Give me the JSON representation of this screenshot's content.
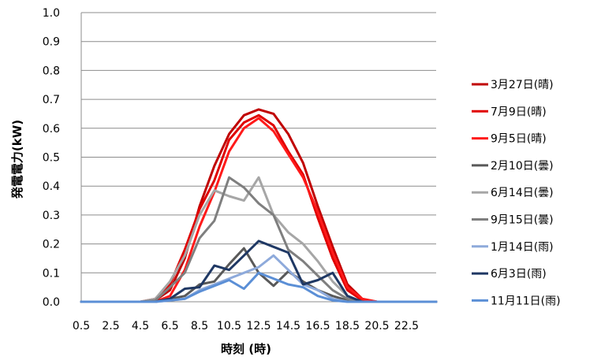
{
  "chart_data": {
    "type": "line",
    "title": "",
    "xlabel": "時刻 (時)",
    "ylabel": "発電電力(kW)",
    "ylim": [
      0,
      1.0
    ],
    "yticks": [
      "0.0",
      "0.1",
      "0.2",
      "0.3",
      "0.4",
      "0.5",
      "0.6",
      "0.7",
      "0.8",
      "0.9",
      "1.0"
    ],
    "xlim": [
      0.5,
      24.5
    ],
    "xticks": [
      "0.5",
      "2.5",
      "4.5",
      "6.5",
      "8.5",
      "10.5",
      "12.5",
      "14.5",
      "16.5",
      "18.5",
      "20.5",
      "22.5"
    ],
    "x": [
      0.5,
      1.5,
      2.5,
      3.5,
      4.5,
      5.5,
      6.5,
      7.5,
      8.5,
      9.5,
      10.5,
      11.5,
      12.5,
      13.5,
      14.5,
      15.5,
      16.5,
      17.5,
      18.5,
      19.5,
      20.5,
      21.5,
      22.5,
      23.5,
      24.5
    ],
    "grid": "horizontal",
    "legend_position": "right",
    "series": [
      {
        "name": "3月27日(晴)",
        "color": "#c00000",
        "values": [
          0,
          0,
          0,
          0,
          0,
          0.005,
          0.04,
          0.15,
          0.33,
          0.47,
          0.58,
          0.645,
          0.665,
          0.65,
          0.58,
          0.48,
          0.33,
          0.19,
          0.06,
          0.01,
          0,
          0,
          0,
          0,
          0
        ]
      },
      {
        "name": "7月9日(晴)",
        "color": "#e00000",
        "values": [
          0,
          0,
          0,
          0,
          0,
          0.01,
          0.06,
          0.18,
          0.32,
          0.42,
          0.56,
          0.62,
          0.645,
          0.61,
          0.52,
          0.44,
          0.29,
          0.15,
          0.04,
          0.005,
          0,
          0,
          0,
          0,
          0
        ]
      },
      {
        "name": "9月5日(晴)",
        "color": "#ff1a1a",
        "values": [
          0,
          0,
          0,
          0,
          0,
          0,
          0.02,
          0.11,
          0.26,
          0.38,
          0.52,
          0.6,
          0.635,
          0.59,
          0.51,
          0.43,
          0.31,
          0.17,
          0.05,
          0.01,
          0,
          0,
          0,
          0,
          0
        ]
      },
      {
        "name": "2月10日(曇)",
        "color": "#595959",
        "values": [
          0,
          0,
          0,
          0,
          0,
          0,
          0.01,
          0.02,
          0.06,
          0.07,
          0.13,
          0.185,
          0.1,
          0.055,
          0.105,
          0.07,
          0.04,
          0.02,
          0.005,
          0,
          0,
          0,
          0,
          0,
          0
        ]
      },
      {
        "name": "6月14日(曇)",
        "color": "#a6a6a6",
        "values": [
          0,
          0,
          0,
          0,
          0,
          0.01,
          0.07,
          0.16,
          0.3,
          0.385,
          0.365,
          0.35,
          0.43,
          0.3,
          0.24,
          0.2,
          0.14,
          0.07,
          0.02,
          0,
          0,
          0,
          0,
          0,
          0
        ]
      },
      {
        "name": "9月15日(曇)",
        "color": "#7f7f7f",
        "values": [
          0,
          0,
          0,
          0,
          0,
          0.005,
          0.05,
          0.1,
          0.22,
          0.28,
          0.43,
          0.395,
          0.34,
          0.3,
          0.18,
          0.14,
          0.09,
          0.04,
          0.01,
          0,
          0,
          0,
          0,
          0,
          0
        ]
      },
      {
        "name": "1月14日(雨)",
        "color": "#8eaadb",
        "values": [
          0,
          0,
          0,
          0,
          0,
          0,
          0.005,
          0.01,
          0.04,
          0.06,
          0.08,
          0.1,
          0.12,
          0.16,
          0.11,
          0.06,
          0.04,
          0.01,
          0,
          0,
          0,
          0,
          0,
          0,
          0
        ]
      },
      {
        "name": "6月3日(雨)",
        "color": "#1f3864",
        "values": [
          0,
          0,
          0,
          0,
          0,
          0,
          0.01,
          0.045,
          0.05,
          0.125,
          0.11,
          0.16,
          0.21,
          0.19,
          0.17,
          0.06,
          0.075,
          0.1,
          0.02,
          0,
          0,
          0,
          0,
          0,
          0
        ]
      },
      {
        "name": "11月11日(雨)",
        "color": "#5b8fd6",
        "values": [
          0,
          0,
          0,
          0,
          0,
          0,
          0.005,
          0.01,
          0.035,
          0.055,
          0.075,
          0.045,
          0.1,
          0.08,
          0.06,
          0.05,
          0.02,
          0.005,
          0,
          0,
          0,
          0,
          0,
          0,
          0
        ]
      }
    ]
  }
}
